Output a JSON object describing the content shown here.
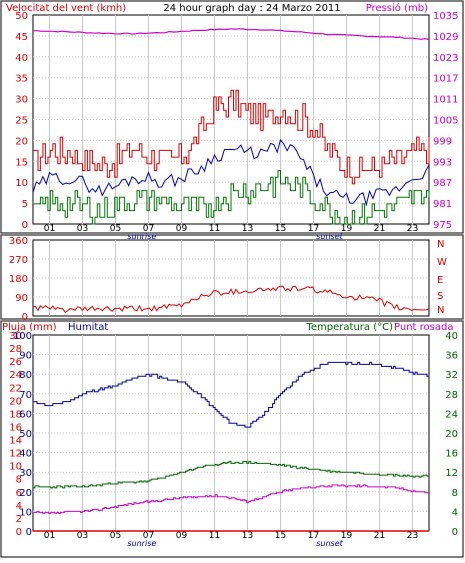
{
  "chart_data": [
    {
      "type": "line",
      "panel": "wind-pressure",
      "title": "24 hour graph day : 24 Marzo 2011",
      "left_axis_label": "Velocitat del vent (kmh)",
      "right_axis_label": "Pressió (mb)",
      "left_ticks": [
        "0",
        "5",
        "10",
        "15",
        "20",
        "25",
        "30",
        "35",
        "40",
        "45",
        "50"
      ],
      "right_ticks": [
        "975",
        "981",
        "987",
        "993",
        "999",
        "1005",
        "1011",
        "1017",
        "1023",
        "1029",
        "1035"
      ],
      "left_range": [
        0,
        50
      ],
      "right_range": [
        975,
        1035
      ],
      "x_ticks": [
        "01",
        "03",
        "05",
        "07",
        "09",
        "11",
        "13",
        "15",
        "17",
        "19",
        "21",
        "23"
      ],
      "x_range": [
        0,
        24
      ],
      "annotations": {
        "sunrise": "sunrise",
        "sunset": "sunset"
      },
      "sunrise_hour": 6.9,
      "sunset_hour": 19.0,
      "grid": true,
      "series": [
        {
          "key": "gust",
          "color": "#dd0000",
          "axis": "left",
          "x": [
            0,
            1,
            2,
            3,
            4,
            5,
            6,
            7,
            8,
            9,
            10,
            11,
            12,
            13,
            14,
            15,
            16,
            17,
            18,
            19,
            20,
            21,
            22,
            23,
            24
          ],
          "values": [
            15,
            18,
            17,
            16,
            14,
            15,
            18,
            17,
            15,
            16,
            21,
            28,
            29,
            27,
            25,
            27,
            26,
            23,
            17,
            14,
            13,
            14,
            15,
            17,
            18
          ]
        },
        {
          "key": "average",
          "color": "#0000bb",
          "axis": "left",
          "x": [
            0,
            1,
            2,
            3,
            4,
            5,
            6,
            7,
            8,
            9,
            10,
            11,
            12,
            13,
            14,
            15,
            16,
            17,
            18,
            19,
            20,
            21,
            22,
            23,
            24
          ],
          "values": [
            8,
            11,
            11,
            10,
            8,
            9,
            11,
            11,
            10,
            11,
            13,
            16,
            18,
            17,
            17,
            19,
            17,
            11,
            7,
            6,
            6,
            7,
            8,
            11,
            13
          ]
        },
        {
          "key": "wind-min",
          "color": "#007700",
          "axis": "left",
          "x": [
            0,
            1,
            2,
            3,
            4,
            5,
            6,
            7,
            8,
            9,
            10,
            11,
            12,
            13,
            14,
            15,
            16,
            17,
            18,
            19,
            20,
            21,
            22,
            23,
            24
          ],
          "values": [
            3,
            5,
            5,
            4,
            3,
            4,
            6,
            6,
            5,
            4,
            3,
            5,
            7,
            8,
            9,
            10,
            9,
            6,
            3,
            2,
            2,
            3,
            4,
            6,
            8
          ]
        },
        {
          "key": "pressure",
          "color": "#cc00cc",
          "axis": "right",
          "x": [
            0,
            2,
            4,
            6,
            8,
            10,
            12,
            14,
            16,
            18,
            20,
            22,
            24
          ],
          "values": [
            1030.5,
            1030.2,
            1029.8,
            1029.6,
            1030.0,
            1030.6,
            1031.0,
            1030.8,
            1030.2,
            1029.4,
            1029.0,
            1028.6,
            1028.0
          ]
        }
      ]
    },
    {
      "type": "line",
      "panel": "wind-direction",
      "left_ticks": [
        "0",
        "90",
        "180",
        "270",
        "360"
      ],
      "left_range": [
        0,
        360
      ],
      "right_ticks": [
        "N",
        "S",
        "E",
        "W",
        "N"
      ],
      "x_range": [
        0,
        24
      ],
      "grid": true,
      "series": [
        {
          "key": "direction",
          "color": "#dd0000",
          "axis": "left",
          "x": [
            0,
            1,
            2,
            3,
            4,
            5,
            6,
            7,
            8,
            9,
            10,
            11,
            12,
            13,
            14,
            15,
            16,
            17,
            18,
            19,
            20,
            21,
            22,
            23,
            24
          ],
          "values": [
            40,
            35,
            30,
            30,
            35,
            30,
            35,
            35,
            40,
            50,
            90,
            110,
            115,
            120,
            125,
            130,
            130,
            125,
            110,
            95,
            85,
            70,
            40,
            30,
            35
          ]
        }
      ]
    },
    {
      "type": "line",
      "panel": "rain-humidity-temperature",
      "left_label_rain": "Pluja (mm)",
      "left_label_humidity": "Humitat",
      "right_label_temperature": "Temperatura (°C)",
      "right_label_dew": "Punt rosada",
      "rain_ticks": [
        "0",
        "2",
        "4",
        "6",
        "8",
        "10",
        "12",
        "14",
        "16",
        "18",
        "20",
        "22",
        "24",
        "26",
        "28",
        "30"
      ],
      "humidity_ticks": [
        "0",
        "10",
        "20",
        "30",
        "40",
        "50",
        "60",
        "70",
        "80",
        "90",
        "100"
      ],
      "temperature_ticks": [
        "0",
        "4",
        "8",
        "12",
        "16",
        "20",
        "24",
        "28",
        "32",
        "36",
        "40"
      ],
      "rain_range": [
        0,
        30
      ],
      "humidity_range": [
        0,
        100
      ],
      "temperature_range": [
        0,
        40
      ],
      "x_ticks": [
        "01",
        "03",
        "05",
        "07",
        "09",
        "11",
        "13",
        "15",
        "17",
        "19",
        "21",
        "23"
      ],
      "x_range": [
        0,
        24
      ],
      "annotations": {
        "sunrise": "sunrise",
        "sunset": "sunset"
      },
      "sunrise_hour": 6.9,
      "sunset_hour": 19.0,
      "grid": true,
      "series": [
        {
          "key": "humidity",
          "color": "#000099",
          "axis": "humidity",
          "x": [
            0,
            1,
            2,
            3,
            4,
            5,
            6,
            7,
            8,
            9,
            10,
            11,
            12,
            13,
            14,
            15,
            16,
            17,
            18,
            19,
            20,
            21,
            22,
            23,
            24
          ],
          "values": [
            66,
            64,
            66,
            70,
            72,
            74,
            78,
            80,
            78,
            76,
            70,
            62,
            55,
            53,
            60,
            70,
            78,
            83,
            86,
            86,
            85,
            85,
            83,
            81,
            79
          ]
        },
        {
          "key": "temperature",
          "color": "#006600",
          "axis": "temperature",
          "x": [
            0,
            1,
            2,
            3,
            4,
            5,
            6,
            7,
            8,
            9,
            10,
            11,
            12,
            13,
            14,
            15,
            16,
            17,
            18,
            19,
            20,
            21,
            22,
            23,
            24
          ],
          "values": [
            9,
            9,
            9,
            9,
            9.4,
            9.8,
            10,
            10.2,
            11,
            12,
            13,
            13.5,
            14,
            14,
            13.8,
            13.4,
            13,
            12.6,
            12.2,
            12,
            11.8,
            11.6,
            11.4,
            11.2,
            11.2
          ]
        },
        {
          "key": "dewpoint",
          "color": "#cc00cc",
          "axis": "temperature",
          "x": [
            0,
            1,
            2,
            3,
            4,
            5,
            6,
            7,
            8,
            9,
            10,
            11,
            12,
            13,
            14,
            15,
            16,
            17,
            18,
            19,
            20,
            21,
            22,
            23,
            24
          ],
          "values": [
            3.8,
            3.6,
            3.8,
            4,
            4.4,
            5,
            5.6,
            6,
            6.4,
            6.8,
            7,
            7.2,
            6.8,
            6,
            7,
            8,
            8.6,
            9,
            9.2,
            9.2,
            9.2,
            9,
            8.8,
            8.2,
            7.8
          ]
        },
        {
          "key": "rain",
          "color": "#dd0000",
          "axis": "rain",
          "x": [
            0,
            24
          ],
          "values": [
            0,
            0
          ]
        }
      ]
    }
  ],
  "colors": {
    "wind_text": "#dd0000",
    "pressure_text": "#cc00cc",
    "humidity_text": "#000099",
    "temperature_text": "#006600",
    "frame": "#000000"
  }
}
